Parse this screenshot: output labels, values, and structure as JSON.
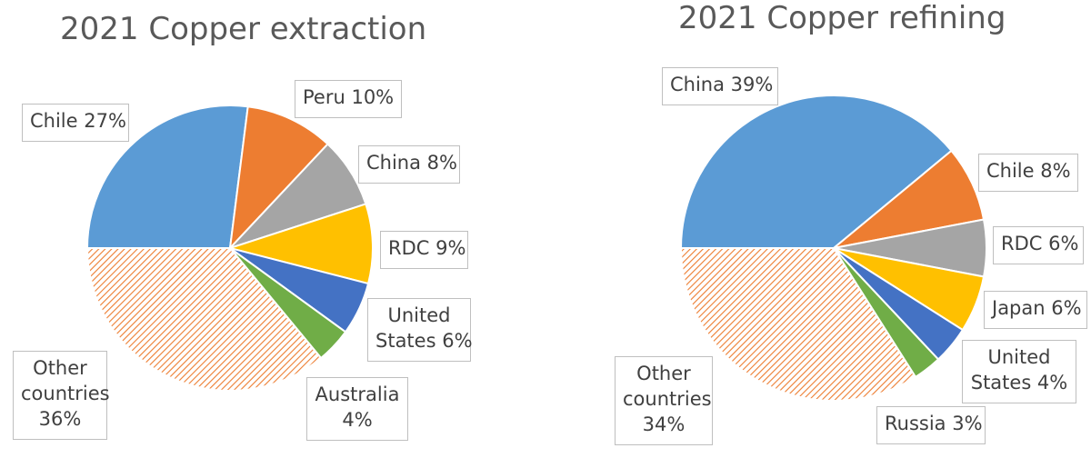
{
  "chart_data": [
    {
      "type": "pie",
      "title": "2021 Copper extraction",
      "slices": [
        {
          "name": "Chile",
          "value": 27,
          "label": "Chile 27%",
          "color": "#5b9bd5",
          "pattern": false
        },
        {
          "name": "Peru",
          "value": 10,
          "label": "Peru 10%",
          "color": "#ed7d31",
          "pattern": false
        },
        {
          "name": "China",
          "value": 8,
          "label": "China 8%",
          "color": "#a5a5a5",
          "pattern": false
        },
        {
          "name": "RDC",
          "value": 9,
          "label": "RDC 9%",
          "color": "#ffc000",
          "pattern": false
        },
        {
          "name": "United States",
          "value": 6,
          "label": "United States 6%",
          "color": "#4472c4",
          "pattern": false
        },
        {
          "name": "Australia",
          "value": 4,
          "label": "Australia 4%",
          "color": "#70ad47",
          "pattern": false
        },
        {
          "name": "Other countries",
          "value": 36,
          "label": "Other countries 36%",
          "color": "#ed7d31",
          "pattern": true
        }
      ]
    },
    {
      "type": "pie",
      "title": "2021 Copper refining",
      "slices": [
        {
          "name": "China",
          "value": 39,
          "label": "China 39%",
          "color": "#5b9bd5",
          "pattern": false
        },
        {
          "name": "Chile",
          "value": 8,
          "label": "Chile 8%",
          "color": "#ed7d31",
          "pattern": false
        },
        {
          "name": "RDC",
          "value": 6,
          "label": "RDC 6%",
          "color": "#a5a5a5",
          "pattern": false
        },
        {
          "name": "Japan",
          "value": 6,
          "label": "Japan 6%",
          "color": "#ffc000",
          "pattern": false
        },
        {
          "name": "United States",
          "value": 4,
          "label": "United States 4%",
          "color": "#4472c4",
          "pattern": false
        },
        {
          "name": "Russia",
          "value": 3,
          "label": "Russia 3%",
          "color": "#70ad47",
          "pattern": false
        },
        {
          "name": "Other countries",
          "value": 34,
          "label": "Other countries 34%",
          "color": "#ed7d31",
          "pattern": true
        }
      ]
    }
  ],
  "labels": {
    "left": [
      "Chile 27%",
      "Peru 10%",
      "China 8%",
      "RDC 9%",
      "United\nStates 6%",
      "Australia\n4%",
      "Other\ncountries\n36%"
    ],
    "right": [
      "China 39%",
      "Chile 8%",
      "RDC 6%",
      "Japan 6%",
      "United\nStates 4%",
      "Russia 3%",
      "Other\ncountries\n34%"
    ]
  }
}
